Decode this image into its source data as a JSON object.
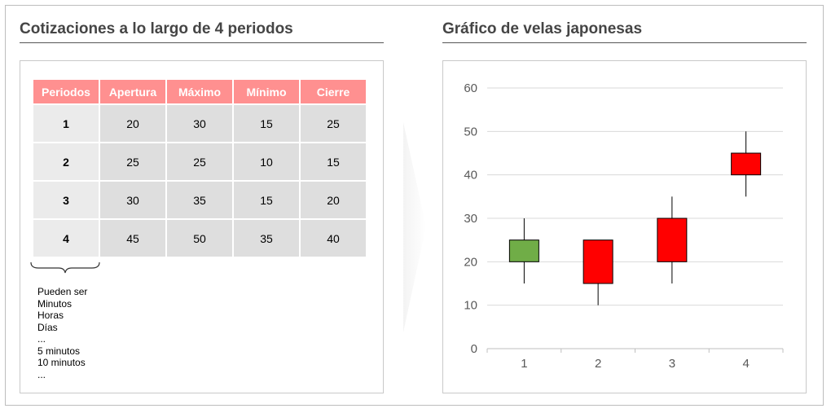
{
  "left": {
    "title": "Cotizaciones a lo largo de 4 periodos",
    "table": {
      "headers": [
        "Periodos",
        "Apertura",
        "Máximo",
        "Mínimo",
        "Cierre"
      ],
      "rows": [
        [
          "1",
          "20",
          "30",
          "15",
          "25"
        ],
        [
          "2",
          "25",
          "25",
          "10",
          "15"
        ],
        [
          "3",
          "30",
          "35",
          "15",
          "20"
        ],
        [
          "4",
          "45",
          "50",
          "35",
          "40"
        ]
      ]
    },
    "note_lines": [
      "Pueden ser",
      "Minutos",
      "Horas",
      "Días",
      "...",
      "5 minutos",
      "10 minutos",
      "..."
    ]
  },
  "right": {
    "title": "Gráfico de velas japonesas"
  },
  "colors": {
    "header": "#ff9090",
    "bullish": "#70ad47",
    "bearish": "#ff0000",
    "grid": "#d9d9d9",
    "text": "#595959"
  },
  "chart_data": {
    "type": "candlestick",
    "categories": [
      "1",
      "2",
      "3",
      "4"
    ],
    "ohlc": [
      {
        "period": "1",
        "open": 20,
        "high": 30,
        "low": 15,
        "close": 25
      },
      {
        "period": "2",
        "open": 25,
        "high": 25,
        "low": 10,
        "close": 15
      },
      {
        "period": "3",
        "open": 30,
        "high": 35,
        "low": 15,
        "close": 20
      },
      {
        "period": "4",
        "open": 45,
        "high": 50,
        "low": 35,
        "close": 40
      }
    ],
    "title": "Gráfico de velas japonesas",
    "ylim": [
      0,
      60
    ],
    "yticks": [
      0,
      10,
      20,
      30,
      40,
      50,
      60
    ],
    "grid": true,
    "legend": "none"
  }
}
